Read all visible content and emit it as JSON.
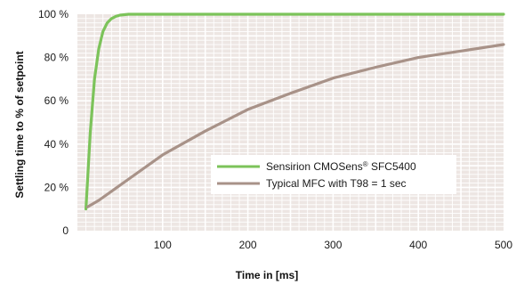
{
  "chart_data": {
    "type": "line",
    "xlabel": "Time in [ms]",
    "ylabel": "Settling time to % of setpoint",
    "xlim": [
      0,
      500
    ],
    "ylim": [
      0,
      100
    ],
    "x_ticks": [
      100,
      200,
      300,
      400,
      500
    ],
    "y_ticks": [
      0,
      20,
      40,
      60,
      80,
      100
    ],
    "y_tick_labels": [
      "0",
      "20 %",
      "40 %",
      "60 %",
      "80 %",
      "100 %"
    ],
    "grid": true,
    "background_color": "#ede6e3",
    "grid_color": "#ffffff",
    "legend": {
      "placement": "center-right",
      "entries": [
        {
          "label_parts": [
            "Sensirion CMOSens",
            "®",
            " SFC5400"
          ],
          "color": "#7cc35a"
        },
        {
          "label_parts": [
            "Typical MFC with T98 = 1 sec"
          ],
          "color": "#a89288"
        }
      ]
    },
    "series": [
      {
        "name": "Sensirion CMOSens® SFC5400",
        "color": "#7cc35a",
        "x": [
          10,
          15,
          20,
          25,
          30,
          35,
          40,
          45,
          50,
          55,
          60,
          500
        ],
        "y": [
          10,
          45,
          70,
          84,
          92,
          96,
          98,
          99,
          99.6,
          99.8,
          100,
          100
        ]
      },
      {
        "name": "Typical MFC with T98 = 1 sec",
        "color": "#a89288",
        "x": [
          12,
          25,
          50,
          75,
          100,
          150,
          200,
          250,
          300,
          350,
          400,
          450,
          500
        ],
        "y": [
          11,
          14,
          21,
          28,
          35,
          46,
          56,
          63.5,
          70.5,
          75.5,
          80,
          83,
          86
        ]
      }
    ]
  }
}
